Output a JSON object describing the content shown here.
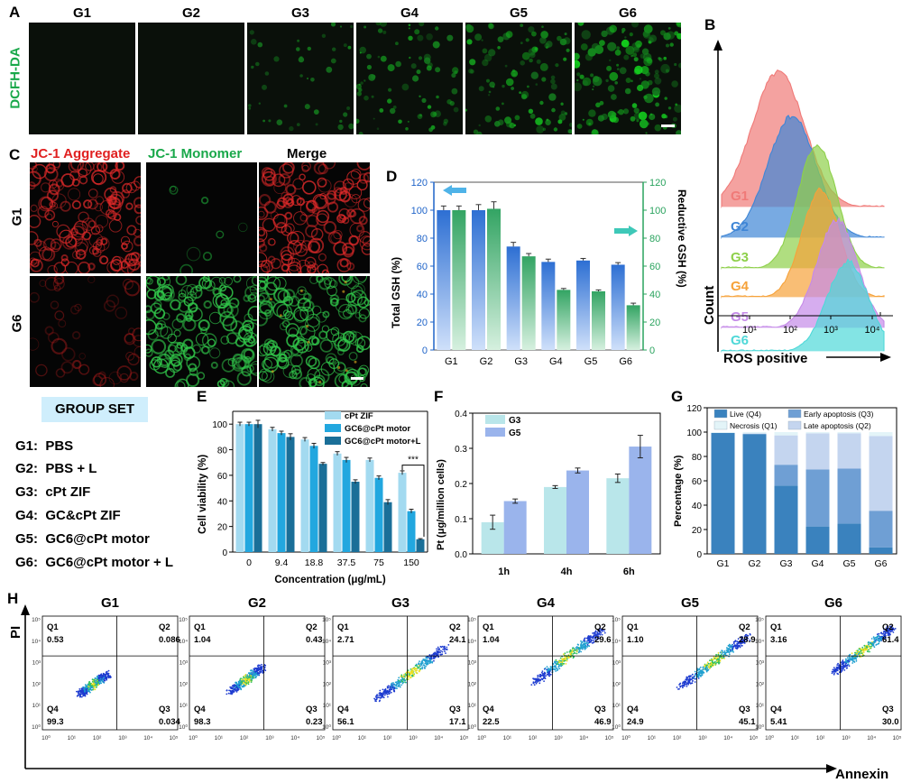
{
  "panel_letters": [
    "A",
    "B",
    "C",
    "D",
    "E",
    "F",
    "G",
    "H"
  ],
  "panelA": {
    "groups": [
      "G1",
      "G2",
      "G3",
      "G4",
      "G5",
      "G6"
    ],
    "stain": "DCFH-DA",
    "intensity": [
      0.0,
      0.0,
      0.25,
      0.45,
      0.6,
      0.85
    ]
  },
  "panelB": {
    "groups": [
      "G1",
      "G2",
      "G3",
      "G4",
      "G5",
      "G6"
    ],
    "colors": [
      "#f07a78",
      "#3f86d6",
      "#8ed04a",
      "#f6a23a",
      "#c58ae8",
      "#4fd8d8"
    ],
    "ylabel": "Count",
    "xlabel": "ROS positive",
    "ticks": [
      "10¹",
      "10²",
      "10³",
      "10⁴"
    ]
  },
  "panelC": {
    "headers": [
      "JC-1 Aggregate",
      "JC-1 Monomer",
      "Merge"
    ],
    "header_colors": [
      "#e02020",
      "#19a84a",
      "#000000"
    ],
    "rows": [
      "G1",
      "G6"
    ]
  },
  "group_set": {
    "title": "GROUP SET",
    "items": [
      "G1:  PBS",
      "G2:  PBS + L",
      "G3:  cPt ZIF",
      "G4:  GC&cPt ZIF",
      "G5:  GC6@cPt motor",
      "G6:  GC6@cPt motor + L"
    ]
  },
  "chart_data": [
    {
      "panel": "D",
      "type": "bar",
      "categories": [
        "G1",
        "G2",
        "G3",
        "G4",
        "G5",
        "G6"
      ],
      "series": [
        {
          "axis": "left",
          "values": [
            100,
            100,
            74,
            63,
            64,
            61
          ],
          "errors": [
            3,
            4,
            3,
            2,
            1.5,
            1.5
          ],
          "color": "#3c7bd6"
        },
        {
          "axis": "right",
          "values": [
            100,
            101,
            67,
            43,
            42,
            32
          ],
          "errors": [
            3,
            5,
            2,
            1,
            1,
            1.5
          ],
          "color": "#3cae6a"
        }
      ],
      "ylabel": "Total GSH (%)",
      "y2label": "Reductive GSH (%)",
      "ylim": [
        0,
        120
      ],
      "yticks": [
        0,
        20,
        40,
        60,
        80,
        100,
        120
      ]
    },
    {
      "panel": "E",
      "type": "bar",
      "categories": [
        "0",
        "9.4",
        "18.8",
        "37.5",
        "75",
        "150"
      ],
      "series": [
        {
          "name": "cPt ZIF",
          "values": [
            100,
            96,
            88,
            77,
            72,
            62
          ],
          "errors": [
            1.5,
            1.5,
            1.5,
            1.5,
            1.5,
            1.5
          ],
          "color": "#a3daf0"
        },
        {
          "name": "GC6@cPt motor",
          "values": [
            100,
            93,
            83,
            72,
            58,
            32
          ],
          "errors": [
            1.5,
            1.5,
            2,
            2,
            1.5,
            1.5
          ],
          "color": "#22a7df"
        },
        {
          "name": "GC6@cPt motor+L",
          "values": [
            100,
            90,
            69,
            55,
            39,
            10
          ],
          "errors": [
            3,
            2.5,
            1,
            1.5,
            2,
            0.5
          ],
          "color": "#1a6f98"
        }
      ],
      "xlabel": "Concentration (μg/mL)",
      "ylabel": "Cell viability (%)",
      "ylim": [
        0,
        110
      ],
      "yticks": [
        0,
        20,
        40,
        60,
        80,
        100
      ],
      "annotation": "***"
    },
    {
      "panel": "F",
      "type": "bar",
      "categories": [
        "1h",
        "4h",
        "6h"
      ],
      "series": [
        {
          "name": "G3",
          "values": [
            0.09,
            0.19,
            0.215
          ],
          "errors": [
            0.02,
            0.004,
            0.012
          ],
          "color": "#b9e6ea"
        },
        {
          "name": "G5",
          "values": [
            0.15,
            0.237,
            0.305
          ],
          "errors": [
            0.006,
            0.007,
            0.032
          ],
          "color": "#9ab4ec"
        }
      ],
      "ylabel": "Pt (μg/million cells)",
      "ylim": [
        0,
        0.4
      ],
      "yticks": [
        0.0,
        0.1,
        0.2,
        0.3,
        0.4
      ]
    },
    {
      "panel": "G",
      "type": "bar",
      "stacked": true,
      "categories": [
        "G1",
        "G2",
        "G3",
        "G4",
        "G5",
        "G6"
      ],
      "series": [
        {
          "name": "Live (Q4)",
          "values": [
            99.3,
            98.3,
            56.1,
            22.5,
            24.9,
            5.41
          ],
          "color": "#3a82be"
        },
        {
          "name": "Early apoptosis (Q3)",
          "values": [
            0.034,
            0.23,
            17.1,
            46.9,
            45.1,
            30.0
          ],
          "color": "#6f9fd4"
        },
        {
          "name": "Late apoptosis (Q2)",
          "values": [
            0.086,
            0.43,
            24.1,
            29.6,
            28.9,
            61.4
          ],
          "color": "#c4d5ef"
        },
        {
          "name": "Necrosis (Q1)",
          "values": [
            0.53,
            1.04,
            2.71,
            1.04,
            1.1,
            3.16
          ],
          "color": "#e3f4f8"
        }
      ],
      "ylabel": "Percentage (%)",
      "ylim": [
        0,
        120
      ],
      "yticks": [
        0,
        20,
        40,
        60,
        80,
        100,
        120
      ]
    },
    {
      "panel": "H",
      "type": "scatter",
      "groups": [
        "G1",
        "G2",
        "G3",
        "G4",
        "G5",
        "G6"
      ],
      "quadrant_labels": [
        "Q1",
        "Q2",
        "Q3",
        "Q4"
      ],
      "quadrants": [
        {
          "Q1": "0.53",
          "Q2": "0.086",
          "Q3": "0.034",
          "Q4": "99.3"
        },
        {
          "Q1": "1.04",
          "Q2": "0.43",
          "Q3": "0.23",
          "Q4": "98.3"
        },
        {
          "Q1": "2.71",
          "Q2": "24.1",
          "Q3": "17.1",
          "Q4": "56.1"
        },
        {
          "Q1": "1.04",
          "Q2": "29.6",
          "Q3": "46.9",
          "Q4": "22.5"
        },
        {
          "Q1": "1.10",
          "Q2": "28.9",
          "Q3": "45.1",
          "Q4": "24.9"
        },
        {
          "Q1": "3.16",
          "Q2": "61.4",
          "Q3": "30.0",
          "Q4": "5.41"
        }
      ],
      "xlabel": "Annexin",
      "ylabel": "PI",
      "xticks": [
        "10⁰",
        "10¹",
        "10²",
        "10³",
        "10⁴",
        "10⁵"
      ],
      "yticks": [
        "10⁵",
        "10⁴",
        "10³",
        "10²",
        "10¹",
        "10⁰"
      ]
    }
  ]
}
